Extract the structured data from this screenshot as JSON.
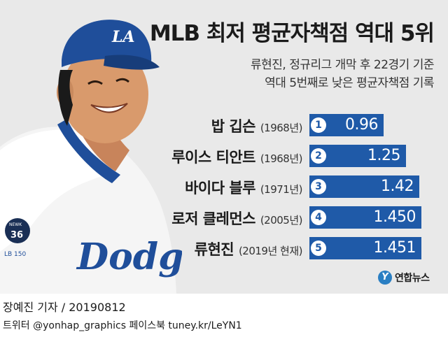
{
  "title": "MLB 최저 평균자책점 역대 5위",
  "subtitle_lines": [
    "류현진,  정규리그 개막 후 22경기 기준",
    "역대 5번째로 낮은 평균자책점 기록"
  ],
  "chart_data": {
    "type": "bar",
    "orientation": "horizontal",
    "categories": [
      {
        "rank": "1",
        "name": "밥 깁슨",
        "year": "(1968년)"
      },
      {
        "rank": "2",
        "name": "루이스 티안트",
        "year": "(1968년)"
      },
      {
        "rank": "3",
        "name": "바이다 블루",
        "year": "(1971년)"
      },
      {
        "rank": "4",
        "name": "로저 클레먼스",
        "year": "(2005년)"
      },
      {
        "rank": "5",
        "name": "류현진",
        "year": "(2019년 현재)"
      }
    ],
    "values": [
      0.96,
      1.25,
      1.42,
      1.45,
      1.451
    ],
    "value_labels": [
      "0.96",
      "1.25",
      "1.42",
      "1.450",
      "1.451"
    ],
    "bar_color": "#1f5aa8",
    "xlim": [
      0,
      1.451
    ]
  },
  "player": {
    "cap_logo": "LA",
    "jersey_text": "Dodgers",
    "patch_number": "36",
    "patch_text": "NEWK",
    "sleeve_text": "LB 150"
  },
  "logo": {
    "mark": "Y",
    "text": "연합뉴스"
  },
  "credit": "장예진 기자 / 20190812",
  "social": "트위터 @yonhap_graphics  페이스북 tuney.kr/LeYN1"
}
